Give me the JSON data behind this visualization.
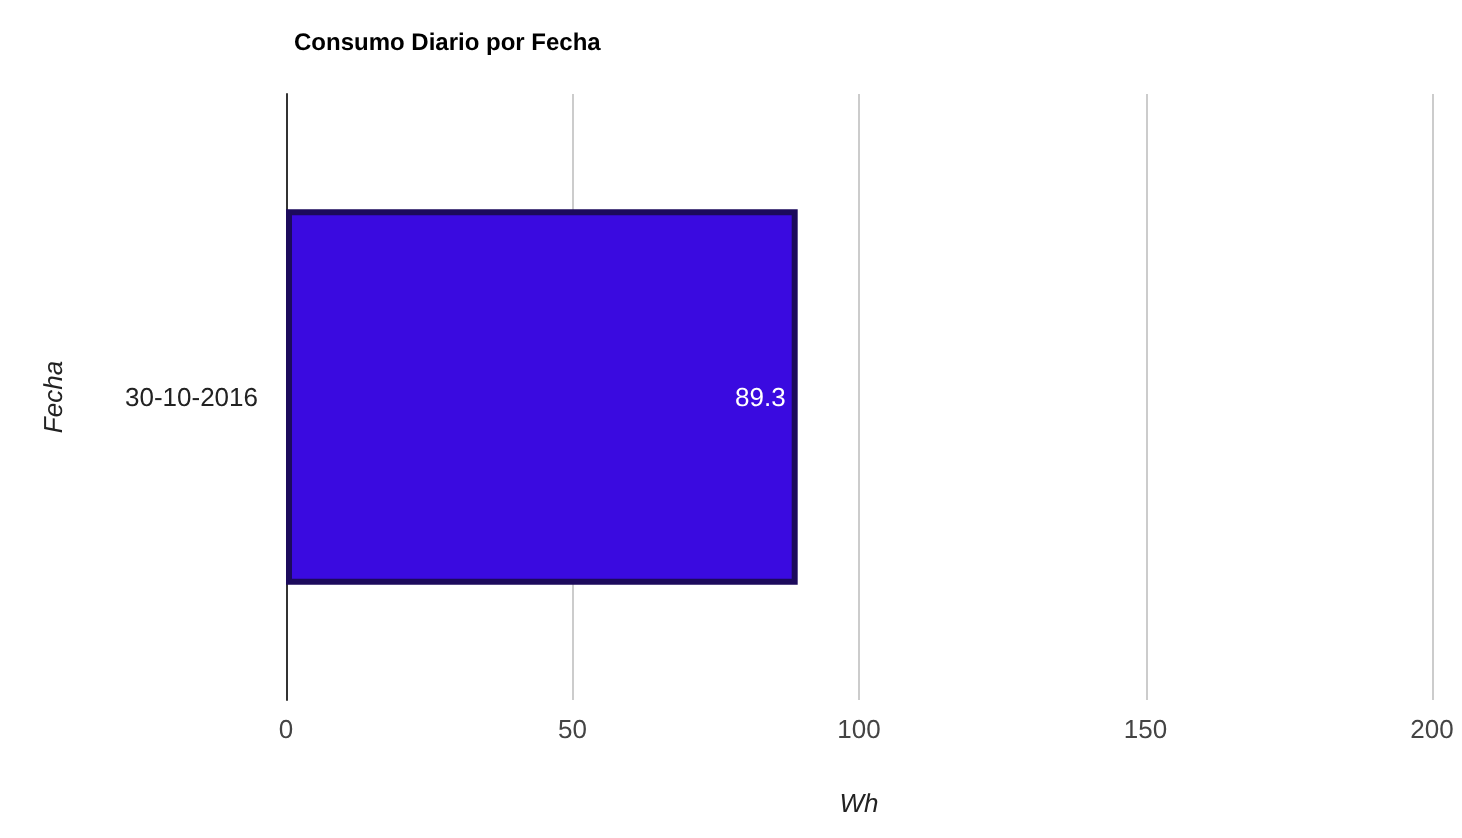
{
  "chart_data": {
    "type": "bar",
    "orientation": "horizontal",
    "title": "Consumo Diario por Fecha",
    "xlabel": "Wh",
    "ylabel": "Fecha",
    "categories": [
      "30-10-2016"
    ],
    "values": [
      89.3
    ],
    "color": "#3a0ae0",
    "xlim": [
      0,
      200
    ],
    "xticks": [
      0,
      50,
      100,
      150,
      200
    ],
    "grid": "x",
    "data_labels": true
  }
}
